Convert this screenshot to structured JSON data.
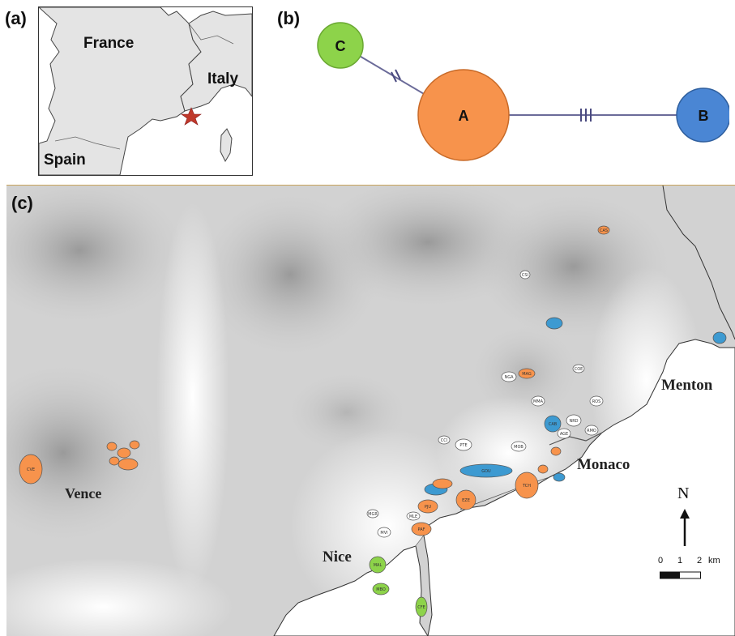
{
  "panels": {
    "a": "(a)",
    "b": "(b)",
    "c": "(c)"
  },
  "inset_map": {
    "labels": {
      "france": "France",
      "italy": "Italy",
      "spain": "Spain"
    },
    "marker_color": "#c0392b"
  },
  "network": {
    "nodes": [
      {
        "id": "C",
        "label": "C",
        "color": "#8dd34a"
      },
      {
        "id": "A",
        "label": "A",
        "color": "#f7934c"
      },
      {
        "id": "B",
        "label": "B",
        "color": "#4a86d4"
      }
    ],
    "edges": [
      {
        "from": "C",
        "to": "A",
        "mutations": 2
      },
      {
        "from": "A",
        "to": "B",
        "mutations": 3
      }
    ]
  },
  "main_map": {
    "place_labels": {
      "vence": "Vence",
      "nice": "Nice",
      "monaco": "Monaco",
      "menton": "Menton"
    },
    "north_label": "N",
    "scale": {
      "ticks": [
        "0",
        "1",
        "2"
      ],
      "unit": "km"
    },
    "site_colors": {
      "A": "#f7934c",
      "B": "#3d9ad1",
      "C": "#8dd34a",
      "unsampled": "#ffffff"
    },
    "sites": [
      {
        "code": "CAS",
        "group": "A"
      },
      {
        "code": "CSI",
        "group": "unsampled"
      },
      {
        "code": "CVE",
        "group": "A"
      },
      {
        "code": "MAG",
        "group": "A"
      },
      {
        "code": "EZE",
        "group": "A"
      },
      {
        "code": "TCH",
        "group": "A"
      },
      {
        "code": "PJU",
        "group": "A"
      },
      {
        "code": "PAF",
        "group": "A"
      },
      {
        "code": "MLE",
        "group": "unsampled"
      },
      {
        "code": "MVI",
        "group": "unsampled"
      },
      {
        "code": "MGR",
        "group": "unsampled"
      },
      {
        "code": "PTE",
        "group": "unsampled"
      },
      {
        "code": "NGA",
        "group": "unsampled"
      },
      {
        "code": "GOU",
        "group": "B"
      },
      {
        "code": "CAB",
        "group": "B"
      },
      {
        "code": "MAL",
        "group": "C"
      },
      {
        "code": "MBO",
        "group": "C"
      },
      {
        "code": "CFE",
        "group": "C"
      },
      {
        "code": "NRD",
        "group": "unsampled"
      },
      {
        "code": "MOB",
        "group": "unsampled"
      },
      {
        "code": "RMO",
        "group": "unsampled"
      },
      {
        "code": "MMA",
        "group": "unsampled"
      },
      {
        "code": "AGE",
        "group": "unsampled"
      },
      {
        "code": "ROS",
        "group": "unsampled"
      },
      {
        "code": "CCI",
        "group": "unsampled"
      },
      {
        "code": "COE",
        "group": "unsampled"
      }
    ]
  }
}
